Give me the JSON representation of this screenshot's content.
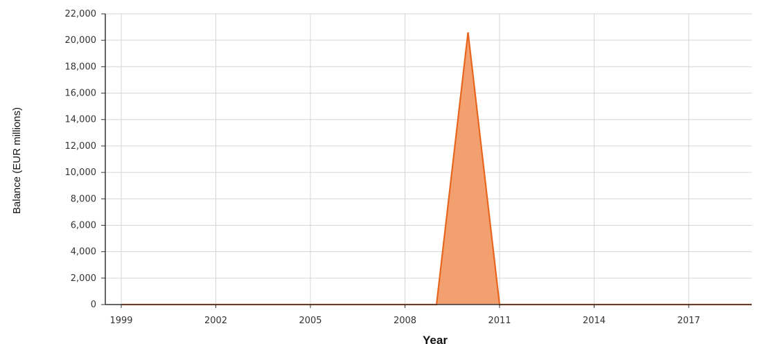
{
  "chart_data": {
    "type": "area",
    "title": "",
    "xlabel": "Year",
    "ylabel": "Balance (EUR millions)",
    "xlim": [
      1998.5,
      2019
    ],
    "ylim": [
      0,
      22000
    ],
    "x_ticks": [
      1999,
      2002,
      2005,
      2008,
      2011,
      2014,
      2017
    ],
    "x_tick_labels": [
      "1999",
      "2002",
      "2005",
      "2008",
      "2011",
      "2014",
      "2017"
    ],
    "y_ticks": [
      0,
      2000,
      4000,
      6000,
      8000,
      10000,
      12000,
      14000,
      16000,
      18000,
      20000,
      22000
    ],
    "y_tick_labels": [
      "0",
      "2,000",
      "4,000",
      "6,000",
      "8,000",
      "10,000",
      "12,000",
      "14,000",
      "16,000",
      "18,000",
      "20,000",
      "22,000"
    ],
    "grid": true,
    "legend": "none",
    "series": [
      {
        "color": "#e8651e",
        "fill": "#f3a070",
        "x": [
          1999,
          2000,
          2001,
          2002,
          2003,
          2004,
          2005,
          2006,
          2007,
          2008,
          2009,
          2010,
          2011,
          2012,
          2013,
          2014,
          2015,
          2016,
          2017,
          2018,
          2019
        ],
        "y": [
          0,
          0,
          0,
          0,
          0,
          0,
          0,
          0,
          0,
          0,
          0,
          20600,
          0,
          0,
          0,
          0,
          0,
          0,
          0,
          0,
          0
        ]
      }
    ]
  }
}
